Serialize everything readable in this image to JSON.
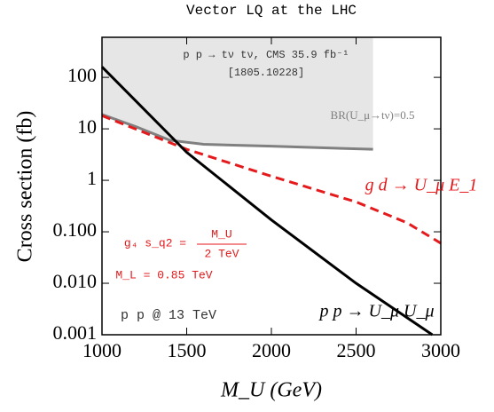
{
  "chart_data": {
    "type": "line",
    "title": "Vector LQ at the LHC",
    "xlabel": "M_U (GeV)",
    "ylabel": "Cross section (fb)",
    "xlim": [
      1000,
      3000
    ],
    "xticks": [
      1000,
      1500,
      2000,
      2500,
      3000
    ],
    "ylim": [
      0.001,
      600
    ],
    "log_y": true,
    "yticks": [
      {
        "value": 0.001,
        "label": "0.001"
      },
      {
        "value": 0.01,
        "label": "0.010"
      },
      {
        "value": 0.1,
        "label": "0.100"
      },
      1,
      10,
      100
    ],
    "series": [
      {
        "name": "BR(U_μ→tν)=0.5",
        "color": "#808080",
        "fill": "#e6e6e6",
        "dash": false,
        "x": [
          1000,
          1200,
          1400,
          1600,
          2000,
          2600
        ],
        "values": [
          19,
          11,
          6,
          5,
          4.6,
          4
        ]
      },
      {
        "name": "g d → U_μ E_1",
        "color": "#e41a1c",
        "dash": true,
        "x": [
          1000,
          1500,
          2000,
          2500,
          2800,
          3000
        ],
        "values": [
          18,
          4,
          1.2,
          0.38,
          0.15,
          0.06
        ]
      },
      {
        "name": "p p → U_μ U_μ",
        "color": "#000000",
        "dash": false,
        "x": [
          1000,
          1500,
          2000,
          2500,
          2950
        ],
        "values": [
          160,
          3.5,
          0.17,
          0.01,
          0.001
        ]
      }
    ],
    "annotations": [
      "p p → tν tν, CMS 35.9 fb⁻¹",
      "[1805.10228]",
      "g₄ s_q2 =",
      "M_U",
      "2 TeV",
      "M_L = 0.85 TeV",
      "p p @ 13 TeV"
    ]
  }
}
